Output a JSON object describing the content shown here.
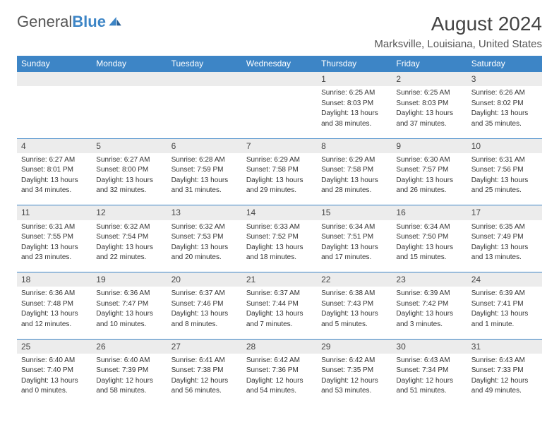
{
  "logo": {
    "word1": "General",
    "word2": "Blue"
  },
  "header": {
    "title": "August 2024",
    "location": "Marksville, Louisiana, United States"
  },
  "colors": {
    "accent": "#3d85c6",
    "dayrow_bg": "#ececec",
    "text": "#333333"
  },
  "columns": [
    "Sunday",
    "Monday",
    "Tuesday",
    "Wednesday",
    "Thursday",
    "Friday",
    "Saturday"
  ],
  "weeks": [
    [
      null,
      null,
      null,
      null,
      {
        "n": "1",
        "sr": "Sunrise: 6:25 AM",
        "ss": "Sunset: 8:03 PM",
        "d1": "Daylight: 13 hours",
        "d2": "and 38 minutes."
      },
      {
        "n": "2",
        "sr": "Sunrise: 6:25 AM",
        "ss": "Sunset: 8:03 PM",
        "d1": "Daylight: 13 hours",
        "d2": "and 37 minutes."
      },
      {
        "n": "3",
        "sr": "Sunrise: 6:26 AM",
        "ss": "Sunset: 8:02 PM",
        "d1": "Daylight: 13 hours",
        "d2": "and 35 minutes."
      }
    ],
    [
      {
        "n": "4",
        "sr": "Sunrise: 6:27 AM",
        "ss": "Sunset: 8:01 PM",
        "d1": "Daylight: 13 hours",
        "d2": "and 34 minutes."
      },
      {
        "n": "5",
        "sr": "Sunrise: 6:27 AM",
        "ss": "Sunset: 8:00 PM",
        "d1": "Daylight: 13 hours",
        "d2": "and 32 minutes."
      },
      {
        "n": "6",
        "sr": "Sunrise: 6:28 AM",
        "ss": "Sunset: 7:59 PM",
        "d1": "Daylight: 13 hours",
        "d2": "and 31 minutes."
      },
      {
        "n": "7",
        "sr": "Sunrise: 6:29 AM",
        "ss": "Sunset: 7:58 PM",
        "d1": "Daylight: 13 hours",
        "d2": "and 29 minutes."
      },
      {
        "n": "8",
        "sr": "Sunrise: 6:29 AM",
        "ss": "Sunset: 7:58 PM",
        "d1": "Daylight: 13 hours",
        "d2": "and 28 minutes."
      },
      {
        "n": "9",
        "sr": "Sunrise: 6:30 AM",
        "ss": "Sunset: 7:57 PM",
        "d1": "Daylight: 13 hours",
        "d2": "and 26 minutes."
      },
      {
        "n": "10",
        "sr": "Sunrise: 6:31 AM",
        "ss": "Sunset: 7:56 PM",
        "d1": "Daylight: 13 hours",
        "d2": "and 25 minutes."
      }
    ],
    [
      {
        "n": "11",
        "sr": "Sunrise: 6:31 AM",
        "ss": "Sunset: 7:55 PM",
        "d1": "Daylight: 13 hours",
        "d2": "and 23 minutes."
      },
      {
        "n": "12",
        "sr": "Sunrise: 6:32 AM",
        "ss": "Sunset: 7:54 PM",
        "d1": "Daylight: 13 hours",
        "d2": "and 22 minutes."
      },
      {
        "n": "13",
        "sr": "Sunrise: 6:32 AM",
        "ss": "Sunset: 7:53 PM",
        "d1": "Daylight: 13 hours",
        "d2": "and 20 minutes."
      },
      {
        "n": "14",
        "sr": "Sunrise: 6:33 AM",
        "ss": "Sunset: 7:52 PM",
        "d1": "Daylight: 13 hours",
        "d2": "and 18 minutes."
      },
      {
        "n": "15",
        "sr": "Sunrise: 6:34 AM",
        "ss": "Sunset: 7:51 PM",
        "d1": "Daylight: 13 hours",
        "d2": "and 17 minutes."
      },
      {
        "n": "16",
        "sr": "Sunrise: 6:34 AM",
        "ss": "Sunset: 7:50 PM",
        "d1": "Daylight: 13 hours",
        "d2": "and 15 minutes."
      },
      {
        "n": "17",
        "sr": "Sunrise: 6:35 AM",
        "ss": "Sunset: 7:49 PM",
        "d1": "Daylight: 13 hours",
        "d2": "and 13 minutes."
      }
    ],
    [
      {
        "n": "18",
        "sr": "Sunrise: 6:36 AM",
        "ss": "Sunset: 7:48 PM",
        "d1": "Daylight: 13 hours",
        "d2": "and 12 minutes."
      },
      {
        "n": "19",
        "sr": "Sunrise: 6:36 AM",
        "ss": "Sunset: 7:47 PM",
        "d1": "Daylight: 13 hours",
        "d2": "and 10 minutes."
      },
      {
        "n": "20",
        "sr": "Sunrise: 6:37 AM",
        "ss": "Sunset: 7:46 PM",
        "d1": "Daylight: 13 hours",
        "d2": "and 8 minutes."
      },
      {
        "n": "21",
        "sr": "Sunrise: 6:37 AM",
        "ss": "Sunset: 7:44 PM",
        "d1": "Daylight: 13 hours",
        "d2": "and 7 minutes."
      },
      {
        "n": "22",
        "sr": "Sunrise: 6:38 AM",
        "ss": "Sunset: 7:43 PM",
        "d1": "Daylight: 13 hours",
        "d2": "and 5 minutes."
      },
      {
        "n": "23",
        "sr": "Sunrise: 6:39 AM",
        "ss": "Sunset: 7:42 PM",
        "d1": "Daylight: 13 hours",
        "d2": "and 3 minutes."
      },
      {
        "n": "24",
        "sr": "Sunrise: 6:39 AM",
        "ss": "Sunset: 7:41 PM",
        "d1": "Daylight: 13 hours",
        "d2": "and 1 minute."
      }
    ],
    [
      {
        "n": "25",
        "sr": "Sunrise: 6:40 AM",
        "ss": "Sunset: 7:40 PM",
        "d1": "Daylight: 13 hours",
        "d2": "and 0 minutes."
      },
      {
        "n": "26",
        "sr": "Sunrise: 6:40 AM",
        "ss": "Sunset: 7:39 PM",
        "d1": "Daylight: 12 hours",
        "d2": "and 58 minutes."
      },
      {
        "n": "27",
        "sr": "Sunrise: 6:41 AM",
        "ss": "Sunset: 7:38 PM",
        "d1": "Daylight: 12 hours",
        "d2": "and 56 minutes."
      },
      {
        "n": "28",
        "sr": "Sunrise: 6:42 AM",
        "ss": "Sunset: 7:36 PM",
        "d1": "Daylight: 12 hours",
        "d2": "and 54 minutes."
      },
      {
        "n": "29",
        "sr": "Sunrise: 6:42 AM",
        "ss": "Sunset: 7:35 PM",
        "d1": "Daylight: 12 hours",
        "d2": "and 53 minutes."
      },
      {
        "n": "30",
        "sr": "Sunrise: 6:43 AM",
        "ss": "Sunset: 7:34 PM",
        "d1": "Daylight: 12 hours",
        "d2": "and 51 minutes."
      },
      {
        "n": "31",
        "sr": "Sunrise: 6:43 AM",
        "ss": "Sunset: 7:33 PM",
        "d1": "Daylight: 12 hours",
        "d2": "and 49 minutes."
      }
    ]
  ]
}
